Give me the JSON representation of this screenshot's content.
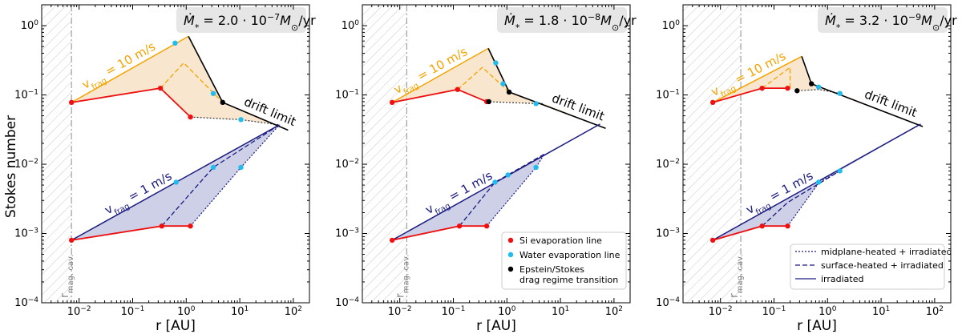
{
  "chart_data": {
    "type": "line",
    "shared": {
      "xlabel": "r [AU]",
      "ylabel": "Stokes number",
      "xscale": "log",
      "yscale": "log",
      "xlim": [
        0.002,
        200
      ],
      "ylim": [
        0.0001,
        2
      ],
      "x_ticks": [
        {
          "v": 0.01,
          "t": "10",
          "e": "−2"
        },
        {
          "v": 0.1,
          "t": "10",
          "e": "−1"
        },
        {
          "v": 1,
          "t": "10",
          "e": "0"
        },
        {
          "v": 10,
          "t": "10",
          "e": "1"
        },
        {
          "v": 100,
          "t": "10",
          "e": "2"
        }
      ],
      "y_ticks": [
        {
          "v": 0.0001,
          "t": "10",
          "e": "−4"
        },
        {
          "v": 0.001,
          "t": "10",
          "e": "−3"
        },
        {
          "v": 0.01,
          "t": "10",
          "e": "−2"
        },
        {
          "v": 0.1,
          "t": "10",
          "e": "−1"
        },
        {
          "v": 1,
          "t": "10",
          "e": "0"
        }
      ],
      "drift_limit_label": "drift limit",
      "cavity_label": "r",
      "cavity_label_sub": "mag. cav.",
      "vfrag10_label": "v",
      "vfrag10_sub": "frag",
      "vfrag10_suffix": " = 10 m/s",
      "vfrag1_label": "v",
      "vfrag1_sub": "frag",
      "vfrag1_suffix": " = 1 m/s",
      "colors": {
        "v10": "#f5a300",
        "v10_fill": "#f7e3c6",
        "v1": "#1a1a80",
        "v1_fill": "#c9cbe4",
        "si": "#ee1111",
        "water": "#22bbee",
        "transition": "#000000"
      }
    },
    "panels": [
      {
        "mdot_lhs": "Ṁ",
        "mdot_sub": "*",
        "mdot_mid": " = 2.0 · 10",
        "mdot_exp": "−7",
        "mdot_unit": "M",
        "mdot_unit_sub": "⊙",
        "mdot_tail": "/yr",
        "r_cav": 0.0072,
        "v10": {
          "irradiated": [
            [
              0.0072,
              0.078
            ],
            [
              1.1,
              0.7
            ]
          ],
          "surface": [
            [
              0.33,
              0.125
            ],
            [
              0.9,
              0.29
            ],
            [
              4.8,
              0.078
            ]
          ],
          "midplane": [
            [
              1.2,
              0.048
            ],
            [
              10.5,
              0.044
            ],
            [
              55,
              0.037
            ]
          ],
          "red": [
            [
              0.0072,
              0.078
            ],
            [
              0.33,
              0.125
            ],
            [
              1.2,
              0.048
            ]
          ],
          "drift": [
            [
              1.1,
              0.7
            ],
            [
              4.8,
              0.078
            ],
            [
              80,
              0.031
            ]
          ],
          "si_points": [
            [
              0.0072,
              0.078
            ],
            [
              0.33,
              0.125
            ],
            [
              1.2,
              0.048
            ]
          ],
          "water_points": [
            [
              0.62,
              0.56
            ],
            [
              3.2,
              0.105
            ],
            [
              10.5,
              0.044
            ]
          ],
          "transition_points": [
            [
              4.8,
              0.078
            ]
          ]
        },
        "v1": {
          "irradiated": [
            [
              0.0072,
              0.0008
            ],
            [
              55,
              0.037
            ]
          ],
          "surface": [
            [
              0.35,
              0.00128
            ],
            [
              3.2,
              0.009
            ],
            [
              55,
              0.037
            ]
          ],
          "midplane": [
            [
              1.2,
              0.00128
            ],
            [
              10.5,
              0.009
            ],
            [
              55,
              0.037
            ]
          ],
          "red": [
            [
              0.0072,
              0.0008
            ],
            [
              0.35,
              0.00128
            ],
            [
              1.2,
              0.00128
            ]
          ],
          "si_points": [
            [
              0.0072,
              0.0008
            ],
            [
              0.35,
              0.00128
            ],
            [
              1.2,
              0.00128
            ]
          ],
          "water_points": [
            [
              0.65,
              0.0055
            ],
            [
              3.2,
              0.009
            ],
            [
              10.5,
              0.009
            ]
          ]
        }
      },
      {
        "mdot_lhs": "Ṁ",
        "mdot_sub": "*",
        "mdot_mid": " = 1.8 · 10",
        "mdot_exp": "−8",
        "mdot_unit": "M",
        "mdot_unit_sub": "⊙",
        "mdot_tail": "/yr",
        "r_cav": 0.0135,
        "v10": {
          "irradiated": [
            [
              0.0072,
              0.078
            ],
            [
              0.45,
              0.47
            ]
          ],
          "surface": [
            [
              0.12,
              0.12
            ],
            [
              0.35,
              0.25
            ],
            [
              1.1,
              0.11
            ]
          ],
          "midplane": [
            [
              0.42,
              0.08
            ],
            [
              3.5,
              0.075
            ],
            [
              5,
              0.075
            ]
          ],
          "red": [
            [
              0.0072,
              0.078
            ],
            [
              0.12,
              0.12
            ],
            [
              0.42,
              0.08
            ]
          ],
          "drift": [
            [
              0.45,
              0.47
            ],
            [
              1.1,
              0.11
            ],
            [
              70,
              0.033
            ]
          ],
          "si_points": [
            [
              0.0072,
              0.078
            ],
            [
              0.12,
              0.12
            ],
            [
              0.42,
              0.08
            ]
          ],
          "water_points": [
            [
              0.62,
              0.29
            ],
            [
              0.85,
              0.145
            ],
            [
              3.5,
              0.075
            ]
          ],
          "transition_points": [
            [
              1.1,
              0.11
            ],
            [
              0.46,
              0.08
            ]
          ]
        },
        "v1": {
          "irradiated": [
            [
              0.0072,
              0.0008
            ],
            [
              55,
              0.038
            ]
          ],
          "surface": [
            [
              0.13,
              0.00128
            ],
            [
              0.6,
              0.0055
            ],
            [
              5,
              0.014
            ]
          ],
          "midplane": [
            [
              0.42,
              0.00128
            ],
            [
              3.5,
              0.009
            ],
            [
              5,
              0.014
            ]
          ],
          "red": [
            [
              0.0072,
              0.0008
            ],
            [
              0.13,
              0.00128
            ],
            [
              0.42,
              0.00128
            ]
          ],
          "si_points": [
            [
              0.0072,
              0.0008
            ],
            [
              0.13,
              0.00128
            ],
            [
              0.42,
              0.00128
            ]
          ],
          "water_points": [
            [
              0.6,
              0.0055
            ],
            [
              1.05,
              0.007
            ],
            [
              3.5,
              0.009
            ]
          ]
        }
      },
      {
        "mdot_lhs": "Ṁ",
        "mdot_sub": "*",
        "mdot_mid": " = 3.2 · 10",
        "mdot_exp": "−9",
        "mdot_unit": "M",
        "mdot_unit_sub": "⊙",
        "mdot_tail": "/yr",
        "r_cav": 0.024,
        "v10": {
          "irradiated": [
            [
              0.0072,
              0.078
            ],
            [
              0.33,
              0.36
            ]
          ],
          "surface": [
            [
              0.06,
              0.125
            ],
            [
              0.2,
              0.25
            ],
            [
              0.2,
              0.125
            ]
          ],
          "midplane": [
            [
              0.28,
              0.115
            ],
            [
              0.7,
              0.12
            ],
            [
              1.7,
              0.105
            ]
          ],
          "red": [
            [
              0.0072,
              0.078
            ],
            [
              0.06,
              0.125
            ],
            [
              0.18,
              0.125
            ]
          ],
          "drift": [
            [
              0.33,
              0.36
            ],
            [
              0.5,
              0.145
            ],
            [
              60,
              0.035
            ]
          ],
          "si_points": [
            [
              0.0072,
              0.078
            ],
            [
              0.06,
              0.125
            ],
            [
              0.18,
              0.125
            ]
          ],
          "water_points": [
            [
              0.68,
              0.13
            ],
            [
              1.7,
              0.105
            ]
          ],
          "transition_points": [
            [
              0.5,
              0.145
            ],
            [
              0.27,
              0.115
            ]
          ]
        },
        "v1": {
          "irradiated": [
            [
              0.0072,
              0.0008
            ],
            [
              55,
              0.038
            ]
          ],
          "surface": [
            [
              0.06,
              0.00128
            ],
            [
              0.18,
              0.0028
            ],
            [
              1.7,
              0.008
            ]
          ],
          "midplane": [
            [
              0.18,
              0.00128
            ],
            [
              0.7,
              0.0055
            ],
            [
              1.7,
              0.008
            ]
          ],
          "red": [
            [
              0.0072,
              0.0008
            ],
            [
              0.06,
              0.00128
            ],
            [
              0.18,
              0.00128
            ]
          ],
          "si_points": [
            [
              0.0072,
              0.0008
            ],
            [
              0.06,
              0.00128
            ],
            [
              0.18,
              0.00128
            ]
          ],
          "water_points": [
            [
              0.68,
              0.0055
            ],
            [
              1.7,
              0.008
            ]
          ]
        }
      }
    ],
    "legends": {
      "points": [
        {
          "label": "Si evaporation line",
          "color": "#ee1111"
        },
        {
          "label": "Water evaporation line",
          "color": "#22bbee"
        },
        {
          "label": "Epstein/Stokes",
          "label2": "drag regime transition",
          "color": "#000000"
        }
      ],
      "lines": [
        {
          "label": "midplane-heated + irradiated",
          "dash": "2,2"
        },
        {
          "label": "surface-heated + irradiated",
          "dash": "6,3"
        },
        {
          "label": "irradiated",
          "dash": ""
        }
      ]
    }
  }
}
